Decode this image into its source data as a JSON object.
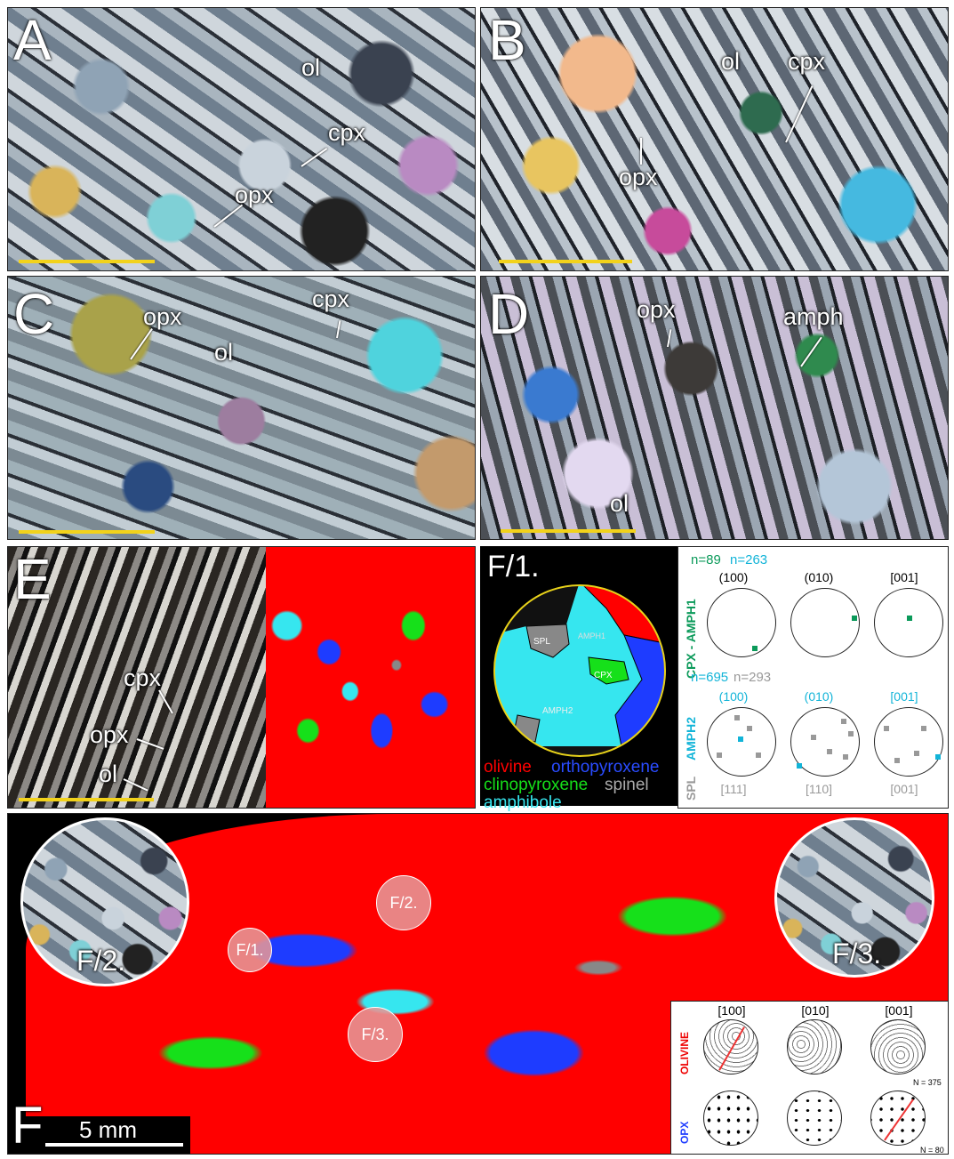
{
  "panels": {
    "a": {
      "label": "A",
      "ol": "ol",
      "cpx": "cpx",
      "opx": "opx"
    },
    "b": {
      "label": "B",
      "ol": "ol",
      "cpx": "cpx",
      "opx": "opx"
    },
    "c": {
      "label": "C",
      "opx": "opx",
      "cpx": "cpx",
      "ol": "ol"
    },
    "d": {
      "label": "D",
      "opx": "opx",
      "amph": "amph",
      "ol": "ol"
    },
    "e": {
      "label": "E",
      "cpx": "cpx",
      "opx": "opx",
      "ol": "ol"
    },
    "f1": {
      "label": "F/1.",
      "grains": {
        "spl": "SPL",
        "amph1": "AMPH1",
        "cpx": "CPX",
        "amph2": "AMPH2"
      },
      "legend": {
        "olivine": "olivine",
        "orthopyroxene": "orthopyroxene",
        "clinopyroxene": "clinopyroxene",
        "spinel": "spinel",
        "amphibole": "amphibole"
      },
      "colors": {
        "olivine": "#ff0000",
        "orthopyroxene": "#1e3cff",
        "clinopyroxene": "#16e01a",
        "spinel": "#8a8a8a",
        "amphibole": "#36e6ef"
      },
      "pole_figures": {
        "top_n_cpx": "n=89",
        "top_n_amph": "n=263",
        "top_headers": [
          "(100)",
          "(010)",
          "[001]"
        ],
        "top_side": "CPX - AMPH1",
        "bottom_n_amph": "n=695",
        "bottom_n_spl": "n=293",
        "bottom_headers": [
          "(100)",
          "(010)",
          "[001]"
        ],
        "bottom_footers": [
          "[111]",
          "[110]",
          "[001]"
        ],
        "bottom_side_spl": "SPL",
        "bottom_side_amph": "AMPH2"
      }
    },
    "f": {
      "label": "F",
      "scalebar": "5 mm",
      "spots": [
        "F/2.",
        "F/1.",
        "F/3."
      ],
      "inset_left": "F/2.",
      "inset_right": "F/3.",
      "pf_headers": [
        "[100]",
        "[010]",
        "[001]"
      ],
      "row1": "OLIVINE",
      "row2": "OPX",
      "n_ol": "N = 375",
      "n_opx": "N = 80"
    }
  }
}
